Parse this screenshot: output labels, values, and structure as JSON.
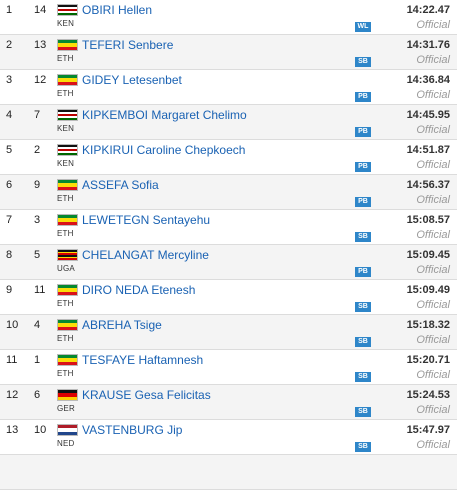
{
  "results": [
    {
      "pos": "1",
      "bib": "14",
      "country": "KEN",
      "name": "OBIRI Hellen",
      "badge": "WL",
      "time": "14:22.47",
      "status": "Official"
    },
    {
      "pos": "2",
      "bib": "13",
      "country": "ETH",
      "name": "TEFERI Senbere",
      "badge": "SB",
      "time": "14:31.76",
      "status": "Official"
    },
    {
      "pos": "3",
      "bib": "12",
      "country": "ETH",
      "name": "GIDEY Letesenbet",
      "badge": "PB",
      "time": "14:36.84",
      "status": "Official"
    },
    {
      "pos": "4",
      "bib": "7",
      "country": "KEN",
      "name": "KIPKEMBOI Margaret Chelimo",
      "badge": "PB",
      "time": "14:45.95",
      "status": "Official"
    },
    {
      "pos": "5",
      "bib": "2",
      "country": "KEN",
      "name": "KIPKIRUI Caroline Chepkoech",
      "badge": "PB",
      "time": "14:51.87",
      "status": "Official"
    },
    {
      "pos": "6",
      "bib": "9",
      "country": "ETH",
      "name": "ASSEFA Sofia",
      "badge": "PB",
      "time": "14:56.37",
      "status": "Official"
    },
    {
      "pos": "7",
      "bib": "3",
      "country": "ETH",
      "name": "LEWETEGN Sentayehu",
      "badge": "SB",
      "time": "15:08.57",
      "status": "Official"
    },
    {
      "pos": "8",
      "bib": "5",
      "country": "UGA",
      "name": "CHELANGAT Mercyline",
      "badge": "PB",
      "time": "15:09.45",
      "status": "Official"
    },
    {
      "pos": "9",
      "bib": "11",
      "country": "ETH",
      "name": "DIRO NEDA Etenesh",
      "badge": "SB",
      "time": "15:09.49",
      "status": "Official"
    },
    {
      "pos": "10",
      "bib": "4",
      "country": "ETH",
      "name": "ABREHA Tsige",
      "badge": "SB",
      "time": "15:18.32",
      "status": "Official"
    },
    {
      "pos": "11",
      "bib": "1",
      "country": "ETH",
      "name": "TESFAYE Haftamnesh",
      "badge": "SB",
      "time": "15:20.71",
      "status": "Official"
    },
    {
      "pos": "12",
      "bib": "6",
      "country": "GER",
      "name": "KRAUSE Gesa Felicitas",
      "badge": "SB",
      "time": "15:24.53",
      "status": "Official"
    },
    {
      "pos": "13",
      "bib": "10",
      "country": "NED",
      "name": "VASTENBURG Jip",
      "badge": "SB",
      "time": "15:47.97",
      "status": "Official"
    }
  ],
  "flags": {
    "KEN": {
      "icon": "kenya-flag-icon",
      "stripes": [
        "#111111",
        "#ffffff",
        "#bb0000",
        "#ffffff",
        "#006600"
      ]
    },
    "ETH": {
      "icon": "ethiopia-flag-icon",
      "stripes": [
        "#078930",
        "#fcdd09",
        "#da121a"
      ]
    },
    "UGA": {
      "icon": "uganda-flag-icon",
      "stripes": [
        "#111111",
        "#fcdc04",
        "#d90000",
        "#111111",
        "#fcdc04",
        "#d90000"
      ]
    },
    "GER": {
      "icon": "germany-flag-icon",
      "stripes": [
        "#111111",
        "#dd0000",
        "#ffce00"
      ]
    },
    "NED": {
      "icon": "netherlands-flag-icon",
      "stripes": [
        "#ae1c28",
        "#ffffff",
        "#21468b"
      ]
    }
  },
  "colors": {
    "name_link": "#1a62b3",
    "badge_bg": "#2e86c9",
    "row_alt": "#f4f4f4"
  }
}
